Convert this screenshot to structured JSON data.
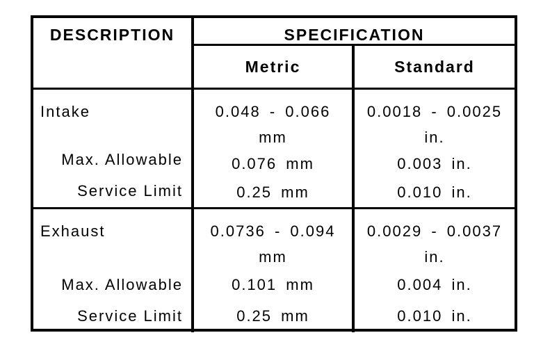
{
  "table": {
    "header": {
      "description": "DESCRIPTION",
      "specification": "SPECIFICATION",
      "metric": "Metric",
      "standard": "Standard"
    },
    "sections": [
      {
        "name": "intake",
        "rows": [
          {
            "label": "Intake",
            "metric": [
              "0.048 - 0.066",
              "mm"
            ],
            "standard": [
              "0.0018 - 0.0025",
              "in."
            ]
          },
          {
            "label": "Max. Allowable",
            "metric": [
              "0.076 mm"
            ],
            "standard": [
              "0.003 in."
            ]
          },
          {
            "label": "Service Limit",
            "metric": [
              "0.25 mm"
            ],
            "standard": [
              "0.010 in."
            ]
          }
        ]
      },
      {
        "name": "exhaust",
        "rows": [
          {
            "label": "Exhaust",
            "metric": [
              "0.0736 - 0.094",
              "mm"
            ],
            "standard": [
              "0.0029 - 0.0037",
              "in."
            ]
          },
          {
            "label": "Max. Allowable",
            "metric": [
              "0.101 mm"
            ],
            "standard": [
              "0.004 in."
            ]
          },
          {
            "label": "Service Limit",
            "metric": [
              "0.25 mm"
            ],
            "standard": [
              "0.010 in."
            ]
          }
        ]
      }
    ],
    "colors": {
      "border": "#000000",
      "text": "#000000",
      "background": "#ffffff"
    }
  }
}
